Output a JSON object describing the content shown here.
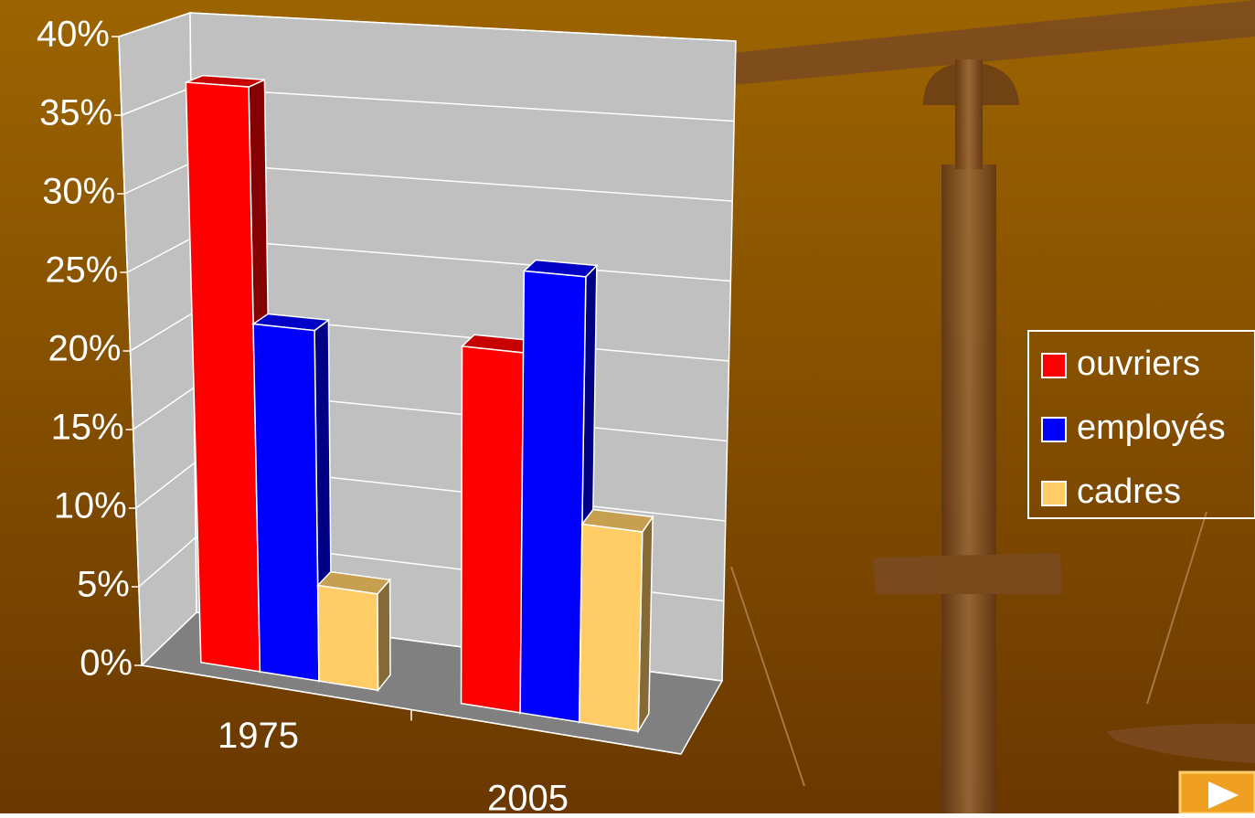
{
  "chart_data": {
    "type": "bar",
    "categories": [
      "1975",
      "2005"
    ],
    "series": [
      {
        "name": "ouvriers",
        "color": "#ff0000",
        "values": [
          37,
          22
        ]
      },
      {
        "name": "employés",
        "color": "#0000ff",
        "values": [
          22,
          27
        ]
      },
      {
        "name": "cadres",
        "color": "#ffcc66",
        "values": [
          6,
          12
        ]
      }
    ],
    "ylim": [
      0,
      40
    ],
    "yticks": [
      {
        "value": 0,
        "label": "0%"
      },
      {
        "value": 5,
        "label": "5%"
      },
      {
        "value": 10,
        "label": "10%"
      },
      {
        "value": 15,
        "label": "15%"
      },
      {
        "value": 20,
        "label": "20%"
      },
      {
        "value": 25,
        "label": "25%"
      },
      {
        "value": 30,
        "label": "30%"
      },
      {
        "value": 35,
        "label": "35%"
      },
      {
        "value": 40,
        "label": "40%"
      }
    ],
    "grid": true,
    "legend": "right"
  }
}
